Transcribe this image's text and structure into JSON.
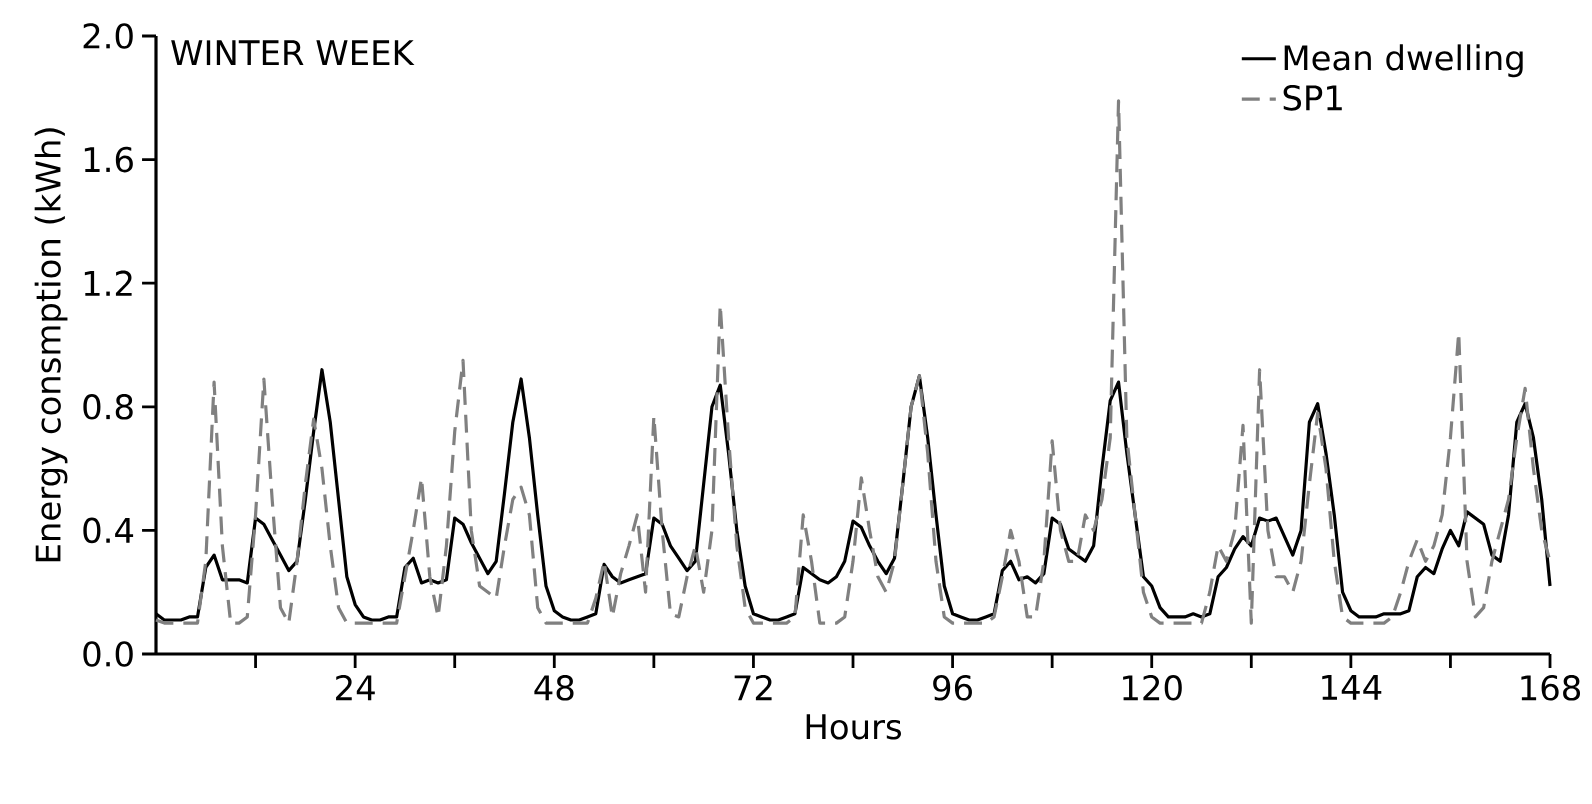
{
  "chart_data": {
    "type": "line",
    "title": "WINTER WEEK",
    "xlabel": "Hours",
    "ylabel": "Energy consmption (kWh)",
    "x": [
      0,
      1,
      2,
      3,
      4,
      5,
      6,
      7,
      8,
      9,
      10,
      11,
      12,
      13,
      14,
      15,
      16,
      17,
      18,
      19,
      20,
      21,
      22,
      23,
      24,
      25,
      26,
      27,
      28,
      29,
      30,
      31,
      32,
      33,
      34,
      35,
      36,
      37,
      38,
      39,
      40,
      41,
      42,
      43,
      44,
      45,
      46,
      47,
      48,
      49,
      50,
      51,
      52,
      53,
      54,
      55,
      56,
      57,
      58,
      59,
      60,
      61,
      62,
      63,
      64,
      65,
      66,
      67,
      68,
      69,
      70,
      71,
      72,
      73,
      74,
      75,
      76,
      77,
      78,
      79,
      80,
      81,
      82,
      83,
      84,
      85,
      86,
      87,
      88,
      89,
      90,
      91,
      92,
      93,
      94,
      95,
      96,
      97,
      98,
      99,
      100,
      101,
      102,
      103,
      104,
      105,
      106,
      107,
      108,
      109,
      110,
      111,
      112,
      113,
      114,
      115,
      116,
      117,
      118,
      119,
      120,
      121,
      122,
      123,
      124,
      125,
      126,
      127,
      128,
      129,
      130,
      131,
      132,
      133,
      134,
      135,
      136,
      137,
      138,
      139,
      140,
      141,
      142,
      143,
      144,
      145,
      146,
      147,
      148,
      149,
      150,
      151,
      152,
      153,
      154,
      155,
      156,
      157,
      158,
      159,
      160,
      161,
      162,
      163,
      164,
      165,
      166,
      167,
      168
    ],
    "series": [
      {
        "name": "Mean dwelling",
        "color": "#000000",
        "line_style": "solid",
        "values": [
          0.13,
          0.11,
          0.11,
          0.11,
          0.12,
          0.12,
          0.28,
          0.32,
          0.24,
          0.24,
          0.24,
          0.23,
          0.44,
          0.42,
          0.37,
          0.32,
          0.27,
          0.3,
          0.5,
          0.72,
          0.92,
          0.75,
          0.5,
          0.25,
          0.16,
          0.12,
          0.11,
          0.11,
          0.12,
          0.12,
          0.28,
          0.31,
          0.23,
          0.24,
          0.23,
          0.24,
          0.44,
          0.42,
          0.36,
          0.31,
          0.26,
          0.3,
          0.52,
          0.75,
          0.89,
          0.7,
          0.45,
          0.22,
          0.14,
          0.12,
          0.11,
          0.11,
          0.12,
          0.13,
          0.29,
          0.25,
          0.23,
          0.24,
          0.25,
          0.26,
          0.44,
          0.42,
          0.35,
          0.31,
          0.27,
          0.3,
          0.55,
          0.8,
          0.87,
          0.65,
          0.4,
          0.22,
          0.13,
          0.12,
          0.11,
          0.11,
          0.12,
          0.13,
          0.28,
          0.26,
          0.24,
          0.23,
          0.25,
          0.3,
          0.43,
          0.41,
          0.35,
          0.3,
          0.26,
          0.31,
          0.55,
          0.8,
          0.9,
          0.7,
          0.45,
          0.22,
          0.13,
          0.12,
          0.11,
          0.11,
          0.12,
          0.13,
          0.27,
          0.3,
          0.24,
          0.25,
          0.23,
          0.26,
          0.44,
          0.42,
          0.34,
          0.32,
          0.3,
          0.35,
          0.6,
          0.82,
          0.88,
          0.65,
          0.45,
          0.25,
          0.22,
          0.15,
          0.12,
          0.12,
          0.12,
          0.13,
          0.12,
          0.13,
          0.25,
          0.28,
          0.34,
          0.38,
          0.35,
          0.44,
          0.43,
          0.44,
          0.38,
          0.32,
          0.4,
          0.75,
          0.81,
          0.65,
          0.45,
          0.2,
          0.14,
          0.12,
          0.12,
          0.12,
          0.13,
          0.13,
          0.13,
          0.14,
          0.25,
          0.28,
          0.26,
          0.34,
          0.4,
          0.35,
          0.46,
          0.44,
          0.42,
          0.32,
          0.3,
          0.45,
          0.75,
          0.81,
          0.7,
          0.5,
          0.22
        ]
      },
      {
        "name": "SP1",
        "color": "#808080",
        "line_style": "dashed",
        "values": [
          0.11,
          0.1,
          0.1,
          0.1,
          0.1,
          0.1,
          0.3,
          0.88,
          0.35,
          0.1,
          0.1,
          0.12,
          0.45,
          0.89,
          0.5,
          0.15,
          0.1,
          0.3,
          0.55,
          0.76,
          0.6,
          0.35,
          0.15,
          0.1,
          0.1,
          0.1,
          0.1,
          0.1,
          0.1,
          0.1,
          0.25,
          0.4,
          0.57,
          0.25,
          0.12,
          0.35,
          0.72,
          0.95,
          0.4,
          0.22,
          0.2,
          0.18,
          0.35,
          0.5,
          0.54,
          0.45,
          0.15,
          0.1,
          0.1,
          0.1,
          0.1,
          0.1,
          0.1,
          0.18,
          0.3,
          0.12,
          0.26,
          0.35,
          0.45,
          0.2,
          0.77,
          0.4,
          0.13,
          0.12,
          0.25,
          0.35,
          0.2,
          0.4,
          1.13,
          0.7,
          0.35,
          0.15,
          0.1,
          0.1,
          0.1,
          0.1,
          0.1,
          0.12,
          0.45,
          0.3,
          0.1,
          0.1,
          0.1,
          0.12,
          0.3,
          0.57,
          0.4,
          0.25,
          0.2,
          0.3,
          0.55,
          0.8,
          0.9,
          0.65,
          0.3,
          0.12,
          0.1,
          0.1,
          0.1,
          0.1,
          0.1,
          0.12,
          0.25,
          0.4,
          0.3,
          0.12,
          0.12,
          0.3,
          0.69,
          0.4,
          0.3,
          0.3,
          0.45,
          0.4,
          0.5,
          0.7,
          1.79,
          0.7,
          0.45,
          0.2,
          0.12,
          0.1,
          0.1,
          0.1,
          0.1,
          0.1,
          0.1,
          0.2,
          0.35,
          0.3,
          0.4,
          0.74,
          0.1,
          0.92,
          0.4,
          0.25,
          0.25,
          0.2,
          0.3,
          0.55,
          0.78,
          0.6,
          0.3,
          0.12,
          0.1,
          0.1,
          0.1,
          0.1,
          0.1,
          0.12,
          0.2,
          0.3,
          0.37,
          0.3,
          0.35,
          0.45,
          0.7,
          1.04,
          0.3,
          0.12,
          0.15,
          0.3,
          0.4,
          0.5,
          0.7,
          0.86,
          0.6,
          0.4,
          0.3
        ]
      }
    ],
    "xlim": [
      0,
      168
    ],
    "xticks": [
      {
        "value": 12,
        "label": null
      },
      24,
      {
        "value": 36,
        "label": null
      },
      48,
      {
        "value": 60,
        "label": null
      },
      72,
      {
        "value": 84,
        "label": null
      },
      96,
      {
        "value": 108,
        "label": null
      },
      120,
      {
        "value": 132,
        "label": null
      },
      144,
      {
        "value": 156,
        "label": null
      },
      168
    ],
    "ylim": [
      0,
      2
    ],
    "yticks": [
      {
        "value": 0,
        "label": "0.0"
      },
      {
        "value": 0.4,
        "label": "0.4"
      },
      {
        "value": 0.8,
        "label": "0.8"
      },
      {
        "value": 1.2,
        "label": "1.2"
      },
      {
        "value": 1.6,
        "label": "1.6"
      },
      {
        "value": 2,
        "label": "2.0"
      }
    ],
    "grid": false,
    "legend": "top right",
    "marker": "none"
  }
}
